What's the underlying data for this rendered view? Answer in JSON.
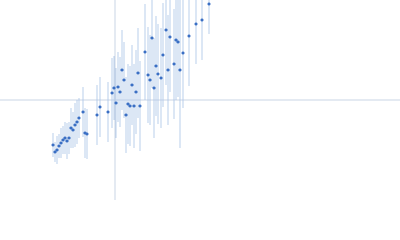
{
  "chart_data": {
    "type": "scatter",
    "x": [
      -62,
      -60,
      -58,
      -56,
      -54,
      -52,
      -50,
      -48,
      -46,
      -44,
      -42,
      -40,
      -38,
      -36,
      -32,
      -30,
      -28,
      -18,
      -15,
      -7,
      -3,
      -1,
      1,
      3,
      5,
      7,
      9,
      11,
      13,
      15,
      17,
      19,
      21,
      23,
      25,
      30,
      33,
      35,
      37,
      39,
      41,
      43,
      46,
      48,
      51,
      53,
      55,
      59,
      61,
      63,
      65,
      68,
      74,
      81,
      87,
      94
    ],
    "y": [
      -45,
      -52,
      -50,
      -46,
      -43,
      -40,
      -38,
      -41,
      -38,
      -28,
      -30,
      -25,
      -22,
      -18,
      -12,
      -33,
      -34,
      -15,
      -7,
      -12,
      7,
      12,
      -3,
      13,
      8,
      30,
      20,
      -15,
      -4,
      -6,
      15,
      -6,
      8,
      27,
      -6,
      48,
      25,
      20,
      62,
      12,
      34,
      26,
      22,
      45,
      70,
      30,
      63,
      36,
      60,
      58,
      30,
      47,
      64,
      76,
      80,
      96
    ],
    "error": [
      12,
      10,
      14,
      12,
      15,
      14,
      16,
      18,
      16,
      20,
      18,
      22,
      22,
      20,
      25,
      25,
      25,
      30,
      30,
      30,
      35,
      32,
      35,
      35,
      35,
      40,
      38,
      38,
      40,
      40,
      40,
      42,
      42,
      45,
      45,
      48,
      48,
      45,
      50,
      50,
      50,
      50,
      50,
      52,
      55,
      55,
      55,
      55,
      60,
      55,
      78,
      55,
      50,
      40,
      40,
      30
    ],
    "color": "#3a6fc4",
    "error_color": "#a9c3e6",
    "zero_lines": true,
    "xlim": [
      -115,
      285
    ],
    "ylim": [
      -100,
      100
    ]
  }
}
